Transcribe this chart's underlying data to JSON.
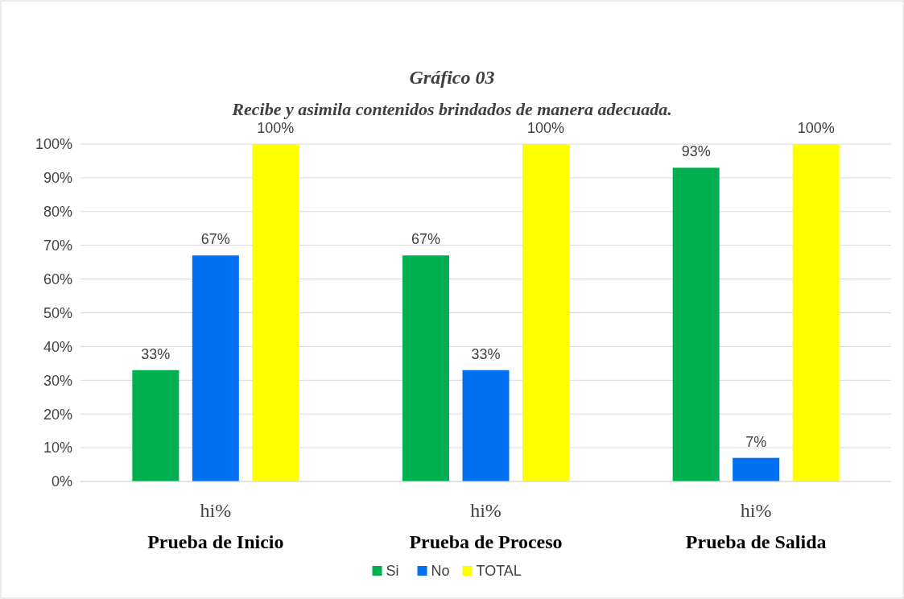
{
  "chart_data": {
    "type": "bar",
    "title": "Gráfico 03",
    "subtitle": "Recibe y asimila contenidos brindados de manera adecuada.",
    "categories": [
      "hi%\nPrueba de Inicio",
      "hi%\nPrueba de Proceso",
      "hi%\nPrueba de Salida"
    ],
    "series": [
      {
        "name": "Si",
        "color": "#00b050",
        "values": [
          33,
          67,
          93
        ]
      },
      {
        "name": "No",
        "color": "#0070f0",
        "values": [
          67,
          33,
          7
        ]
      },
      {
        "name": "TOTAL",
        "color": "#ffff00",
        "values": [
          100,
          100,
          100
        ]
      }
    ],
    "ylim": [
      0,
      100
    ],
    "yticks": [
      {
        "value": 0,
        "label": "0%"
      },
      {
        "value": 10,
        "label": "10%"
      },
      {
        "value": 20,
        "label": "20%"
      },
      {
        "value": 30,
        "label": "30%"
      },
      {
        "value": 40,
        "label": "40%"
      },
      {
        "value": 50,
        "label": "50%"
      },
      {
        "value": 60,
        "label": "60%"
      },
      {
        "value": 70,
        "label": "70%"
      },
      {
        "value": 80,
        "label": "80%"
      },
      {
        "value": 90,
        "label": "90%"
      },
      {
        "value": 100,
        "label": "100%"
      }
    ],
    "value_labels": [
      [
        "33%",
        "67%",
        "93%"
      ],
      [
        "67%",
        "33%",
        "7%"
      ],
      [
        "100%",
        "100%",
        "100%"
      ]
    ],
    "grid": "y",
    "legend": "bottom"
  }
}
